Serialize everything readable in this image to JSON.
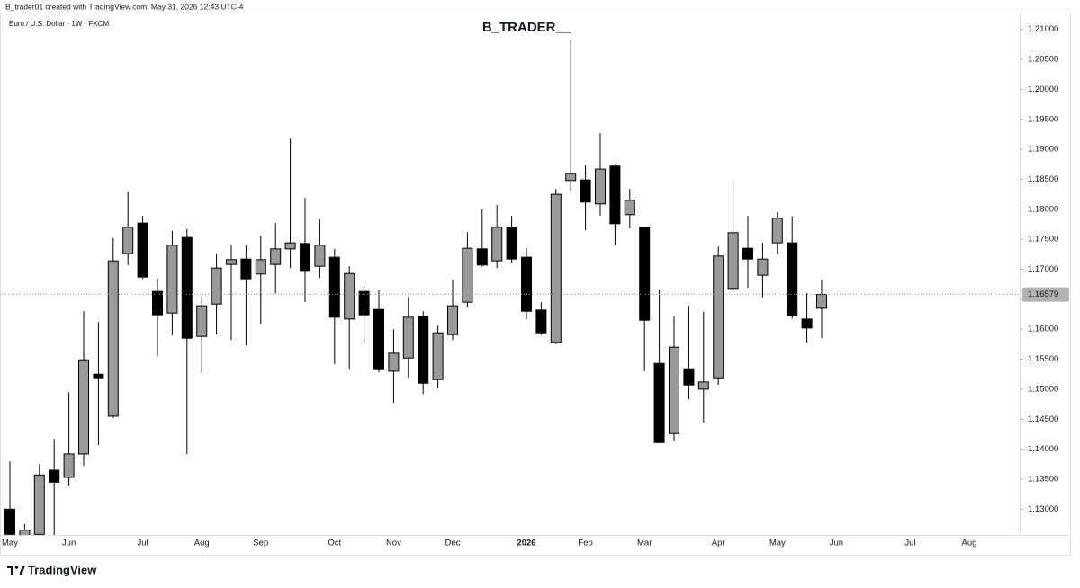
{
  "header": {
    "credit": "B_trader01 created with TradingView.com, May 31, 2026 12:43 UTC-4",
    "symbol": "Euro / U.S. Dollar · 1W · FXCM",
    "brand": "TradingView"
  },
  "chart_data": {
    "type": "candlestick",
    "title": "B_TRADER__",
    "categories": [
      "May",
      null,
      null,
      null,
      "Jun",
      null,
      null,
      null,
      null,
      "Jul",
      null,
      null,
      null,
      "Aug",
      null,
      null,
      null,
      "Sep",
      null,
      null,
      null,
      null,
      "Oct",
      null,
      null,
      null,
      "Nov",
      null,
      null,
      null,
      "Dec",
      null,
      null,
      null,
      null,
      "2026",
      null,
      null,
      null,
      "Feb",
      null,
      null,
      null,
      "Mar",
      null,
      null,
      null,
      null,
      "Apr",
      null,
      null,
      null,
      "May",
      null,
      null,
      null,
      "Jun",
      null,
      null,
      null,
      null,
      "Jul",
      null,
      null,
      null,
      "Aug"
    ],
    "open": [
      1.13,
      1.1255,
      1.1258,
      1.1365,
      1.1353,
      1.1392,
      1.1525,
      1.1455,
      1.1726,
      1.1777,
      1.1663,
      1.1627,
      1.1753,
      1.1588,
      1.1642,
      1.1708,
      1.1717,
      1.1692,
      1.1708,
      1.1734,
      1.1743,
      1.1705,
      1.172,
      1.1617,
      1.1663,
      1.1633,
      1.153,
      1.1552,
      1.1621,
      1.1516,
      1.1591,
      1.1645,
      1.1734,
      1.1714,
      1.177,
      1.172,
      1.1632,
      1.1578,
      1.1848,
      1.1849,
      1.1809,
      1.1872,
      1.1791,
      1.177,
      1.1543,
      1.1426,
      1.1534,
      1.15,
      1.1519,
      1.1668,
      1.1735,
      1.169,
      1.1744,
      1.1744,
      1.1617,
      1.1635,
      null,
      null,
      null,
      null,
      null,
      null,
      null,
      null,
      null,
      null
    ],
    "high": [
      1.13796,
      1.1275,
      1.1375,
      1.1417,
      1.1495,
      1.163,
      1.1612,
      1.1752,
      1.183,
      1.1789,
      1.1684,
      1.1764,
      1.1767,
      1.1654,
      1.1726,
      1.1741,
      1.174,
      1.1756,
      1.1777,
      1.1918,
      1.1819,
      1.1783,
      1.1734,
      1.1705,
      1.1672,
      1.1666,
      1.16,
      1.1654,
      1.163,
      1.1606,
      1.1683,
      1.1762,
      1.1801,
      1.1807,
      1.1789,
      1.1735,
      1.1645,
      1.1834,
      1.2082,
      1.1873,
      1.1927,
      1.1875,
      1.1834,
      1.177,
      1.1666,
      1.1621,
      1.1639,
      1.1629,
      1.1738,
      1.1849,
      1.1789,
      1.1744,
      1.1795,
      1.1788,
      1.166,
      1.1683,
      null,
      null,
      null,
      null,
      null,
      null,
      null,
      null,
      null,
      null
    ],
    "low": [
      1.1249,
      1.122,
      1.125,
      1.125,
      1.1339,
      1.1372,
      1.1407,
      1.1452,
      1.1707,
      1.1684,
      1.1555,
      1.159,
      1.1392,
      1.1527,
      1.1591,
      1.1582,
      1.1573,
      1.1609,
      1.166,
      1.1702,
      1.1645,
      1.1686,
      1.1542,
      1.1534,
      1.1579,
      1.1528,
      1.1477,
      1.1519,
      1.1492,
      1.1501,
      1.1582,
      1.1636,
      1.1704,
      1.1702,
      1.1711,
      1.1617,
      1.1591,
      1.1575,
      1.1831,
      1.1765,
      1.1789,
      1.1741,
      1.1768,
      1.153,
      1.141,
      1.1414,
      1.1483,
      1.1444,
      1.1507,
      1.1665,
      1.1669,
      1.1653,
      1.1725,
      1.1618,
      1.1578,
      1.1585,
      null,
      null,
      null,
      null,
      null,
      null,
      null,
      null,
      null,
      null
    ],
    "close": [
      1.1258,
      1.1265,
      1.1357,
      1.1345,
      1.1392,
      1.1549,
      1.1519,
      1.1714,
      1.177,
      1.1687,
      1.1624,
      1.174,
      1.1585,
      1.1639,
      1.1702,
      1.1716,
      1.1684,
      1.1716,
      1.1734,
      1.1744,
      1.1698,
      1.174,
      1.162,
      1.1693,
      1.1624,
      1.1534,
      1.156,
      1.162,
      1.151,
      1.1594,
      1.1639,
      1.1735,
      1.1707,
      1.177,
      1.1717,
      1.163,
      1.1594,
      1.1825,
      1.186,
      1.1812,
      1.1867,
      1.1776,
      1.1815,
      1.1615,
      1.1411,
      1.157,
      1.1507,
      1.1512,
      1.1722,
      1.1761,
      1.1717,
      1.1717,
      1.1785,
      1.1623,
      1.1602,
      1.16579,
      null,
      null,
      null,
      null,
      null,
      null,
      null,
      null,
      null,
      null
    ],
    "up_color": "#999999",
    "down_color": "#000000",
    "last_price": 1.16579,
    "ylim": [
      1.1257,
      1.2128
    ],
    "yticks": [
      {
        "value": 1.13,
        "label": "1.13000"
      },
      {
        "value": 1.135,
        "label": "1.13500"
      },
      {
        "value": 1.14,
        "label": "1.14000"
      },
      {
        "value": 1.145,
        "label": "1.14500"
      },
      {
        "value": 1.15,
        "label": "1.15000"
      },
      {
        "value": 1.155,
        "label": "1.15500"
      },
      {
        "value": 1.16,
        "label": "1.16000"
      },
      {
        "value": 1.165,
        "label": "1.16500"
      },
      {
        "value": 1.17,
        "label": "1.17000"
      },
      {
        "value": 1.175,
        "label": "1.17500"
      },
      {
        "value": 1.18,
        "label": "1.18000"
      },
      {
        "value": 1.185,
        "label": "1.18500"
      },
      {
        "value": 1.19,
        "label": "1.19000"
      },
      {
        "value": 1.195,
        "label": "1.19500"
      },
      {
        "value": 1.2,
        "label": "1.20000"
      },
      {
        "value": 1.205,
        "label": "1.20500"
      },
      {
        "value": 1.21,
        "label": "1.21000"
      }
    ],
    "grid": false
  }
}
